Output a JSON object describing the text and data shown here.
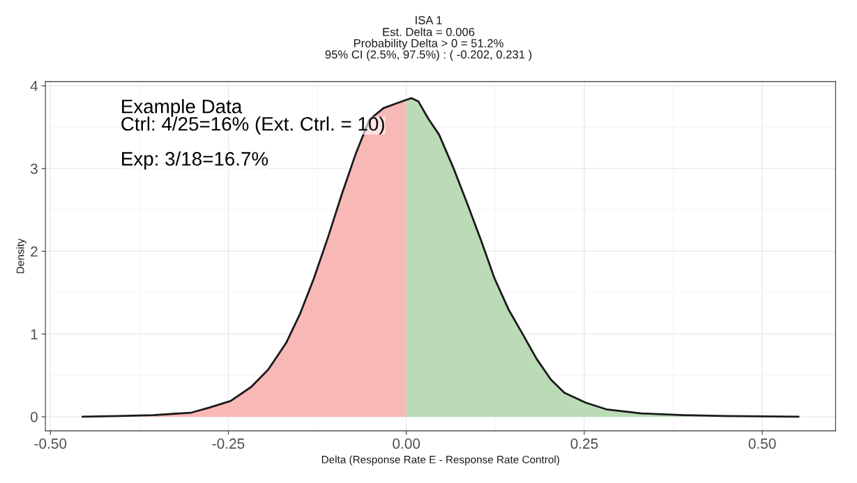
{
  "chart_data": {
    "type": "area",
    "title": "ISA 1",
    "subtitle": "Est. Delta = 0.006\nProbability Delta > 0 = 51.2%\n95% CI (2.5%, 97.5%) : ( -0.202, 0.231 )",
    "xlabel": "Delta (Response Rate E - Response Rate Control)",
    "ylabel": "Density",
    "annotations": [
      "Example Data",
      "Ctrl: 4/25=16% (Ext. Ctrl. = 10)",
      "Exp: 3/18=16.7%"
    ],
    "series": [
      {
        "color": "#f8b8b5",
        "x": [
          -0.455,
          -0.404,
          -0.355,
          -0.302,
          -0.277,
          -0.247,
          -0.218,
          -0.194,
          -0.169,
          -0.149,
          -0.13,
          -0.11,
          -0.091,
          -0.071,
          -0.052,
          -0.032,
          -0.013,
          0.0
        ],
        "values": [
          0,
          0.01,
          0.02,
          0.05,
          0.11,
          0.19,
          0.36,
          0.57,
          0.89,
          1.25,
          1.67,
          2.17,
          2.68,
          3.18,
          3.59,
          3.73,
          3.79,
          3.83
        ]
      },
      {
        "color": "#badbb6",
        "x": [
          0.0,
          0.007,
          0.017,
          0.031,
          0.046,
          0.066,
          0.085,
          0.105,
          0.124,
          0.144,
          0.164,
          0.183,
          0.203,
          0.222,
          0.252,
          0.281,
          0.33,
          0.389,
          0.448,
          0.551
        ],
        "values": [
          3.83,
          3.85,
          3.81,
          3.6,
          3.41,
          3.01,
          2.59,
          2.13,
          1.67,
          1.29,
          0.99,
          0.7,
          0.45,
          0.29,
          0.17,
          0.09,
          0.04,
          0.02,
          0.01,
          0
        ]
      },
      {
        "type": "line",
        "color": "#1a1a1a",
        "x": [
          -0.455,
          -0.404,
          -0.355,
          -0.302,
          -0.277,
          -0.247,
          -0.218,
          -0.194,
          -0.169,
          -0.149,
          -0.13,
          -0.11,
          -0.091,
          -0.071,
          -0.052,
          -0.032,
          -0.013,
          0.0,
          0.007,
          0.017,
          0.031,
          0.046,
          0.066,
          0.085,
          0.105,
          0.124,
          0.144,
          0.164,
          0.183,
          0.203,
          0.222,
          0.252,
          0.281,
          0.33,
          0.389,
          0.448,
          0.551
        ],
        "values": [
          0,
          0.01,
          0.02,
          0.05,
          0.11,
          0.19,
          0.36,
          0.57,
          0.89,
          1.25,
          1.67,
          2.17,
          2.68,
          3.18,
          3.59,
          3.73,
          3.79,
          3.83,
          3.85,
          3.81,
          3.6,
          3.41,
          3.01,
          2.59,
          2.13,
          1.67,
          1.29,
          0.99,
          0.7,
          0.45,
          0.29,
          0.17,
          0.09,
          0.04,
          0.02,
          0.01,
          0
        ]
      }
    ],
    "xlim": [
      -0.507,
      0.603
    ],
    "ylim": [
      -0.17,
      4.05
    ],
    "xticks": [
      {
        "value": -0.5,
        "label": "-0.50"
      },
      {
        "value": -0.25,
        "label": "-0.25"
      },
      {
        "value": 0,
        "label": "0.00"
      },
      {
        "value": 0.25,
        "label": "0.25"
      },
      {
        "value": 0.5,
        "label": "0.50"
      }
    ],
    "yticks": [
      0,
      1,
      2,
      3,
      4
    ],
    "grid": true
  }
}
